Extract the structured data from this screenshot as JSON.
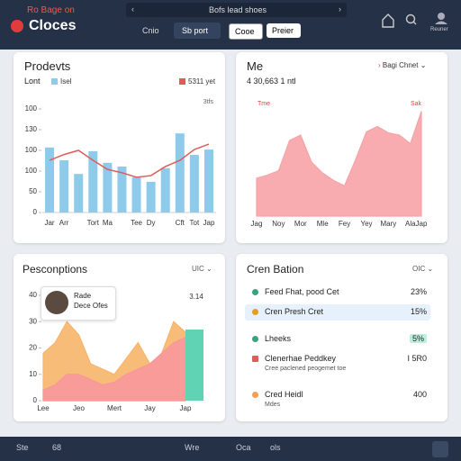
{
  "header": {
    "tagline": "Ro Bage on",
    "brand": "Cloces",
    "search": "Bofs lead shoes",
    "tabs": [
      "Cnio",
      "Sb port"
    ],
    "buttons": [
      "Cooe",
      "Preier"
    ],
    "user": "Reuner"
  },
  "products": {
    "title": "Prodevts",
    "legend_label": "Lont",
    "chart": {
      "type": "bar",
      "categories": [
        "Jar",
        "Arr",
        null,
        "Tort",
        "Ma",
        null,
        "Tee",
        "Dy",
        null,
        "Cft",
        "Tot",
        "Jap"
      ],
      "series": [
        {
          "name": "Isel",
          "color": "#8ecbea",
          "values": [
            157,
            126,
            93,
            148,
            120,
            111,
            85,
            74,
            107,
            191,
            139,
            152
          ]
        },
        {
          "name": "5311 yet",
          "color": "#e05b5b",
          "type": "line",
          "values": [
            126,
            140,
            150,
            126,
            104,
            96,
            85,
            89,
            111,
            126,
            152,
            165
          ]
        }
      ],
      "ylim": [
        0,
        250
      ],
      "yticks": [
        0,
        50,
        100,
        {
          "value": 150,
          "label": "100"
        },
        {
          "value": 200,
          "label": "130"
        },
        {
          "value": 250,
          "label": "100"
        }
      ],
      "annotation": "3tfs"
    }
  },
  "metrics": {
    "title": "Me",
    "subtitle": "4 30,663 1 ntl",
    "dropdown": "Bagi Chnet",
    "chart": {
      "type": "area",
      "categories": [
        "Jag",
        null,
        "Noy",
        null,
        "Mor",
        null,
        "Mle",
        null,
        "Fey",
        null,
        "Yey",
        null,
        "Mary",
        null,
        "Ala",
        "Jap"
      ],
      "values": [
        35,
        38,
        42,
        70,
        75,
        50,
        40,
        33,
        28,
        52,
        78,
        83,
        77,
        75,
        67,
        97
      ],
      "color": "#f7a3a7",
      "ylim": [
        0,
        100
      ],
      "annotations": [
        "Tme",
        "Sak"
      ]
    }
  },
  "prescriptions": {
    "title": "Pesconptions",
    "dropdown": "UIC",
    "profile": {
      "name": "Rade",
      "role": "Dece Ofes"
    },
    "chart": {
      "type": "area",
      "categories": [
        "Lee",
        null,
        null,
        "Jeo",
        null,
        null,
        "Mert",
        null,
        null,
        "Jay",
        null,
        null,
        "Jap"
      ],
      "series": [
        {
          "color": "#f7b56a",
          "values": [
            18,
            22,
            30,
            25,
            14,
            12,
            10,
            16,
            22,
            14,
            18,
            30,
            26
          ]
        },
        {
          "color": "#f7979c",
          "values": [
            4,
            6,
            10,
            10,
            8,
            6,
            7,
            10,
            12,
            14,
            18,
            22,
            24
          ]
        }
      ],
      "bar": {
        "value": 27,
        "color": "#5fd3b3"
      },
      "annotation": "3.14",
      "ylim": [
        0,
        40
      ],
      "yticks": [
        0,
        10,
        20,
        30,
        40
      ]
    }
  },
  "breakdown": {
    "title": "Cren Bation",
    "dropdown": "OIC",
    "items": [
      {
        "label": "Feed Fhat, pood Cet",
        "value": "23%"
      },
      {
        "label": "Cren Presh Cret",
        "value": "15%"
      },
      {
        "label": "Lheeks",
        "value": "5%"
      },
      {
        "label": "Clenerhae Peddkey",
        "sub": "Cree paclened peogemet toe",
        "value": "I 5R0"
      },
      {
        "label": "Cred Heidl",
        "sub": "Mdes",
        "value": "400"
      }
    ]
  },
  "footer": {
    "items": [
      "Ste",
      "68",
      "Wre",
      "Oca",
      "ols"
    ]
  }
}
